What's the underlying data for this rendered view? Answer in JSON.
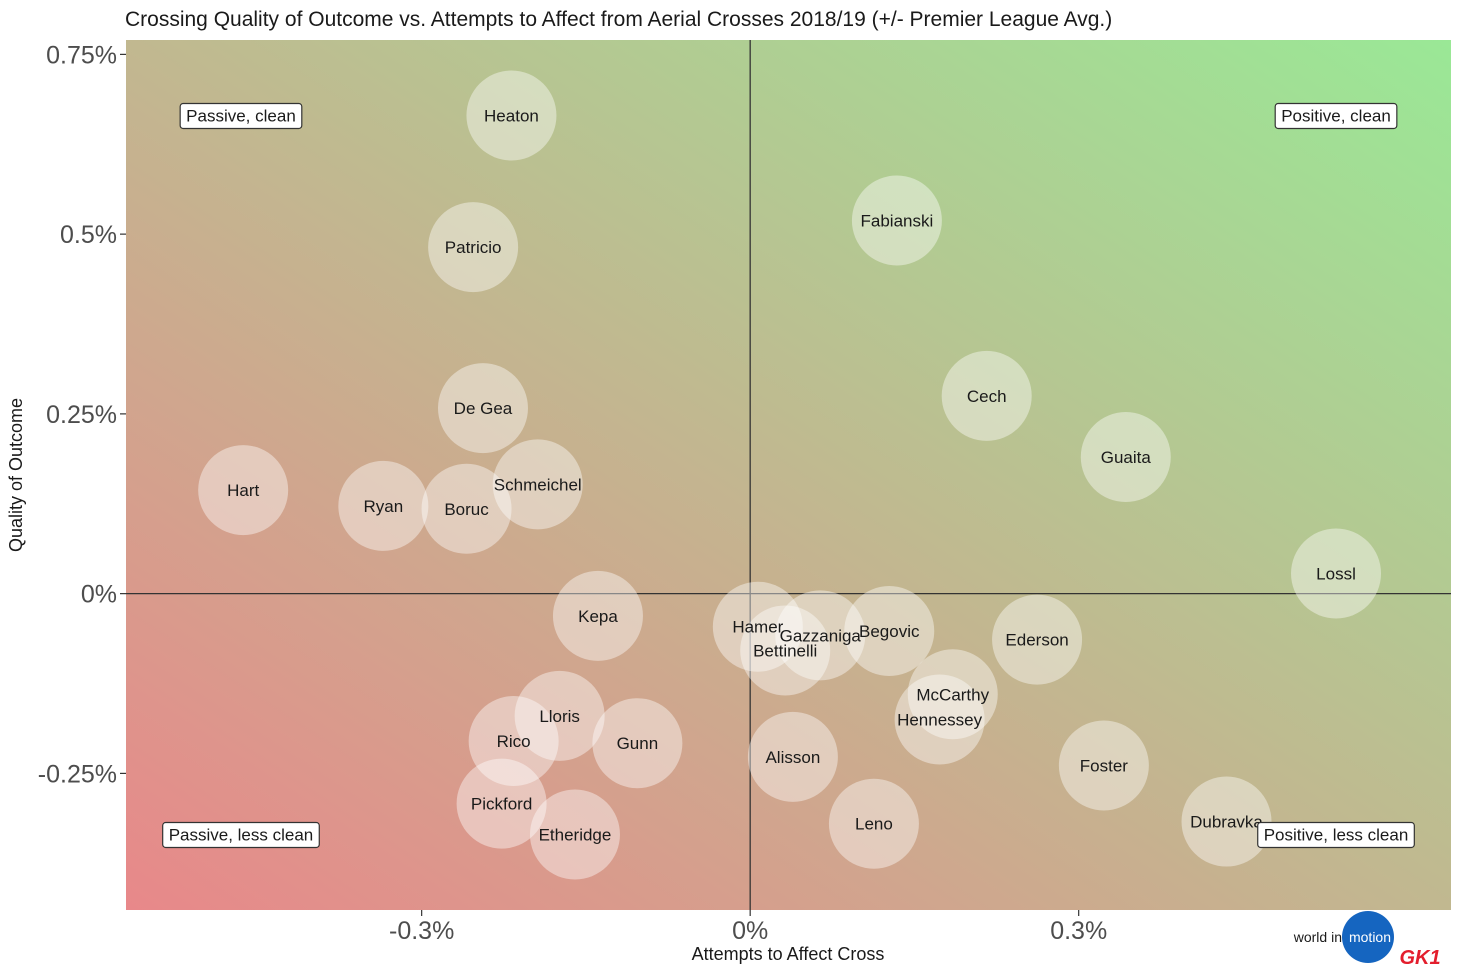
{
  "chart_data": {
    "type": "scatter",
    "title": "Crossing Quality of Outcome vs. Attempts to Affect from Aerial Crosses 2018/19 (+/- Premier League Avg.)",
    "xlabel": "Attempts to Affect Cross",
    "ylabel": "Quality of Outcome",
    "xlim": [
      -0.57,
      0.64
    ],
    "ylim": [
      -0.44,
      0.77
    ],
    "x_ticks": [
      -0.3,
      0,
      0.3
    ],
    "x_tick_labels": [
      "-0.3%",
      "0%",
      "0.3%"
    ],
    "y_ticks": [
      -0.25,
      0,
      0.25,
      0.5,
      0.75
    ],
    "y_tick_labels": [
      "-0.25%",
      "0%",
      "0.25%",
      "0.5%",
      "0.75%"
    ],
    "reference_lines": {
      "x": 0,
      "y": 0
    },
    "grid": false,
    "background_gradient": {
      "bottom_left": "#e8888a",
      "top_right": "#9ae896"
    },
    "quadrant_labels": [
      {
        "text": "Passive, clean",
        "x": -0.465,
        "y": 0.665
      },
      {
        "text": "Positive, clean",
        "x": 0.535,
        "y": 0.665
      },
      {
        "text": "Passive, less clean",
        "x": -0.465,
        "y": -0.335
      },
      {
        "text": "Positive, less clean",
        "x": 0.535,
        "y": -0.335
      }
    ],
    "points": [
      {
        "label": "Heaton",
        "x": -0.218,
        "y": 0.665
      },
      {
        "label": "Patricio",
        "x": -0.253,
        "y": 0.482
      },
      {
        "label": "De Gea",
        "x": -0.244,
        "y": 0.258
      },
      {
        "label": "Schmeichel",
        "x": -0.194,
        "y": 0.152
      },
      {
        "label": "Hart",
        "x": -0.463,
        "y": 0.144
      },
      {
        "label": "Ryan",
        "x": -0.335,
        "y": 0.122
      },
      {
        "label": "Boruc",
        "x": -0.259,
        "y": 0.118
      },
      {
        "label": "Fabianski",
        "x": 0.134,
        "y": 0.519
      },
      {
        "label": "Cech",
        "x": 0.216,
        "y": 0.275
      },
      {
        "label": "Guaita",
        "x": 0.343,
        "y": 0.19
      },
      {
        "label": "Lossl",
        "x": 0.535,
        "y": 0.028
      },
      {
        "label": "Kepa",
        "x": -0.139,
        "y": -0.031
      },
      {
        "label": "Hamer",
        "x": 0.007,
        "y": -0.046
      },
      {
        "label": "Gazzaniga",
        "x": 0.064,
        "y": -0.058
      },
      {
        "label": "Bettinelli",
        "x": 0.032,
        "y": -0.079
      },
      {
        "label": "Begovic",
        "x": 0.127,
        "y": -0.052
      },
      {
        "label": "Ederson",
        "x": 0.262,
        "y": -0.064
      },
      {
        "label": "McCarthy",
        "x": 0.185,
        "y": -0.14
      },
      {
        "label": "Hennessey",
        "x": 0.173,
        "y": -0.175
      },
      {
        "label": "Lloris",
        "x": -0.174,
        "y": -0.17
      },
      {
        "label": "Rico",
        "x": -0.216,
        "y": -0.205
      },
      {
        "label": "Gunn",
        "x": -0.103,
        "y": -0.208
      },
      {
        "label": "Alisson",
        "x": 0.039,
        "y": -0.227
      },
      {
        "label": "Foster",
        "x": 0.323,
        "y": -0.239
      },
      {
        "label": "Pickford",
        "x": -0.227,
        "y": -0.292
      },
      {
        "label": "Etheridge",
        "x": -0.16,
        "y": -0.335
      },
      {
        "label": "Leno",
        "x": 0.113,
        "y": -0.32
      },
      {
        "label": "Dubravka",
        "x": 0.435,
        "y": -0.317
      }
    ]
  },
  "branding": {
    "prefix": "world in",
    "highlight": "motion",
    "logo": "GK1",
    "globe_color": "#1565c0",
    "logo_color": "#e31e2d"
  }
}
